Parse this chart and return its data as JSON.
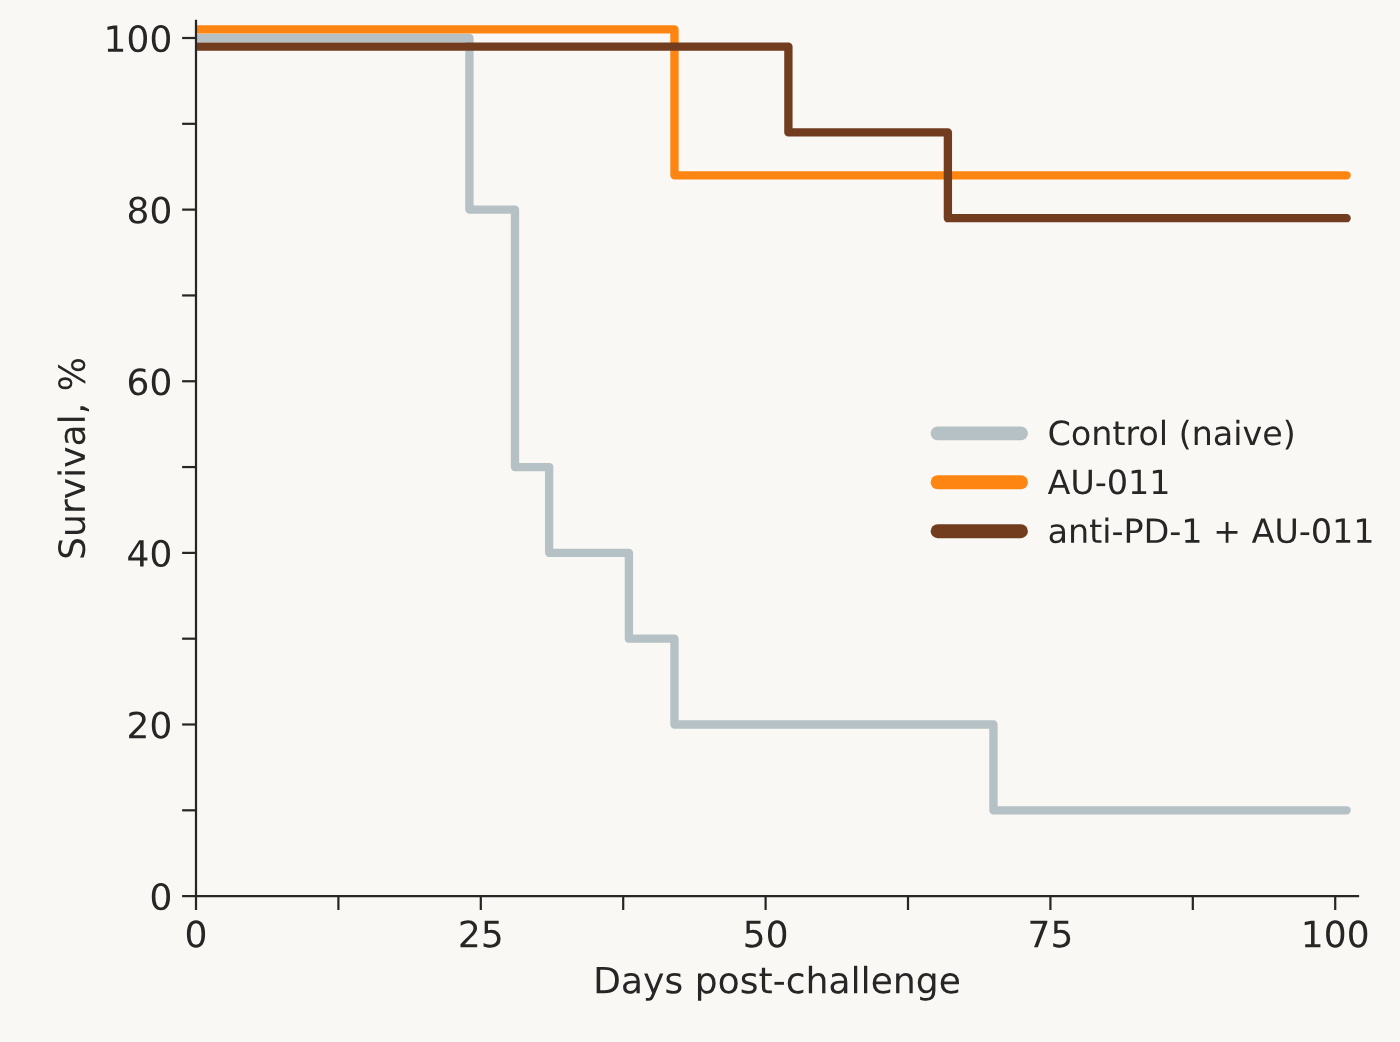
{
  "chart_data": {
    "type": "step",
    "xlabel": "Days post-challenge",
    "ylabel": "Survival, %",
    "xlim": [
      0,
      102
    ],
    "ylim": [
      0,
      102
    ],
    "xticks": [
      0,
      {
        "value": 12.5,
        "label": null
      },
      25,
      {
        "value": 37.5,
        "label": null
      },
      50,
      {
        "value": 62.5,
        "label": null
      },
      75,
      {
        "value": 87.5,
        "label": null
      },
      100
    ],
    "yticks": [
      0,
      {
        "value": 10,
        "label": null
      },
      20,
      {
        "value": 30,
        "label": null
      },
      40,
      {
        "value": 50,
        "label": null
      },
      60,
      {
        "value": 70,
        "label": null
      },
      80,
      {
        "value": 90,
        "label": null
      },
      100
    ],
    "grid": false,
    "legend": "right",
    "line_style": "solid",
    "marker": "none",
    "series": [
      {
        "name": "Control (naive)",
        "color": "#b5c1c4",
        "x": [
          0,
          24,
          28,
          31,
          38,
          42,
          70,
          101
        ],
        "values": [
          100,
          80,
          50,
          40,
          30,
          20,
          10,
          10
        ]
      },
      {
        "name": "AU-011",
        "color": "#ff8512",
        "x": [
          0,
          42,
          101
        ],
        "values": [
          101,
          84,
          84
        ]
      },
      {
        "name": "anti-PD-1 + AU-011",
        "color": "#723d1f",
        "x": [
          0,
          52,
          66,
          101
        ],
        "values": [
          99,
          89,
          79,
          79
        ]
      }
    ]
  }
}
